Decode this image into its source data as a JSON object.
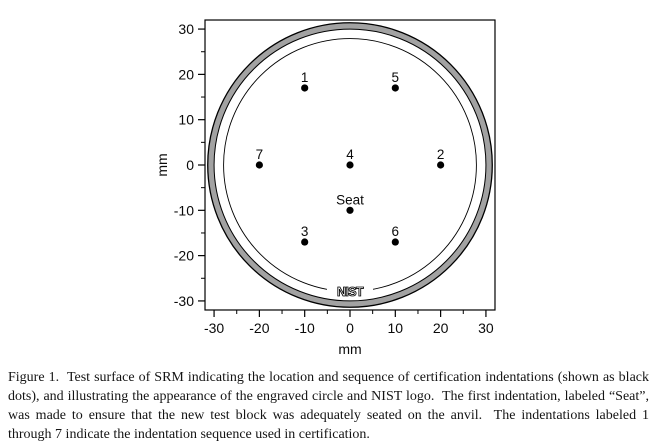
{
  "figure": {
    "caption": "Figure 1.  Test surface of SRM indicating the location and sequence of certification indentations (shown as black dots), and illustrating the appearance of the engraved circle and NIST logo.  The first indentation, labeled “Seat”, was made to ensure that the new test block was adequately seated on the anvil.  The indentations labeled 1 through 7 indicate the indentation sequence used in certification."
  },
  "chart_data": {
    "type": "scatter",
    "title": "",
    "xlabel": "mm",
    "ylabel": "mm",
    "xlim": [
      -32,
      32
    ],
    "ylim": [
      -32,
      32
    ],
    "x_major_ticks": [
      -30,
      -20,
      -10,
      0,
      10,
      20,
      30
    ],
    "x_minor_ticks": [
      -25,
      -15,
      -5,
      5,
      15,
      25
    ],
    "y_major_ticks": [
      -30,
      -20,
      -10,
      0,
      10,
      20,
      30
    ],
    "y_minor_ticks": [
      -25,
      -15,
      -5,
      5,
      15,
      25
    ],
    "grid": false,
    "legend": false,
    "points": [
      {
        "label": "1",
        "x": -10,
        "y": 17
      },
      {
        "label": "5",
        "x": 10,
        "y": 17
      },
      {
        "label": "7",
        "x": -20,
        "y": 0
      },
      {
        "label": "4",
        "x": 0,
        "y": 0
      },
      {
        "label": "2",
        "x": 20,
        "y": 0
      },
      {
        "label": "Seat",
        "x": 0,
        "y": -10
      },
      {
        "label": "3",
        "x": -10,
        "y": -17
      },
      {
        "label": "6",
        "x": 10,
        "y": -17
      }
    ],
    "block_outline": {
      "outer_radius_mm": 31.4,
      "ring_inner_radius_mm": 30.0,
      "ring_fill": "#a2a2a2"
    },
    "engraved_circle": {
      "radius_mm": 27.9
    },
    "logo": {
      "text": "NIST",
      "x": 0,
      "y": -27.9
    },
    "point_color": "#000000",
    "axis_color": "#000000"
  },
  "colors": {
    "background": "#ffffff",
    "ring_fill": "#a2a2a2",
    "line": "#000000",
    "text": "#141414"
  }
}
